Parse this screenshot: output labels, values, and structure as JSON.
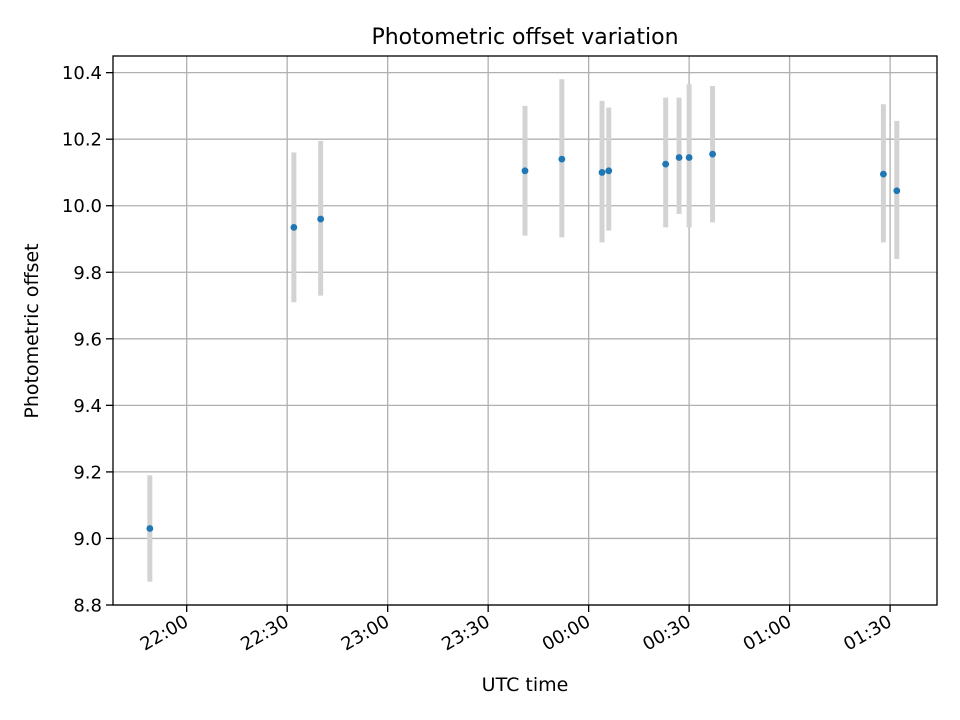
{
  "chart_data": {
    "type": "scatter",
    "title": "Photometric offset variation",
    "xlabel": "UTC time",
    "ylabel": "Photometric offset",
    "xlim": [
      "21:38",
      "01:44"
    ],
    "ylim": [
      8.8,
      10.45
    ],
    "x_ticks": [
      "22:00",
      "22:30",
      "23:00",
      "23:30",
      "00:00",
      "00:30",
      "01:00",
      "01:30"
    ],
    "y_ticks": [
      "8.8",
      "9.0",
      "9.2",
      "9.4",
      "9.6",
      "9.8",
      "10.0",
      "10.2",
      "10.4"
    ],
    "grid": true,
    "colors": {
      "points": "#1f77b4",
      "error_bars": "#d3d3d3",
      "grid": "#b0b0b0"
    },
    "points": [
      {
        "x": "21:49",
        "y": 9.03,
        "y_low": 8.87,
        "y_high": 9.19
      },
      {
        "x": "22:32",
        "y": 9.935,
        "y_low": 9.71,
        "y_high": 10.16
      },
      {
        "x": "22:40",
        "y": 9.96,
        "y_low": 9.73,
        "y_high": 10.195
      },
      {
        "x": "23:41",
        "y": 10.105,
        "y_low": 9.91,
        "y_high": 10.3
      },
      {
        "x": "23:52",
        "y": 10.14,
        "y_low": 9.905,
        "y_high": 10.38
      },
      {
        "x": "00:04",
        "y": 10.1,
        "y_low": 9.89,
        "y_high": 10.315
      },
      {
        "x": "00:06",
        "y": 10.105,
        "y_low": 9.925,
        "y_high": 10.295
      },
      {
        "x": "00:23",
        "y": 10.125,
        "y_low": 9.935,
        "y_high": 10.325
      },
      {
        "x": "00:27",
        "y": 10.145,
        "y_low": 9.975,
        "y_high": 10.325
      },
      {
        "x": "00:30",
        "y": 10.145,
        "y_low": 9.935,
        "y_high": 10.365
      },
      {
        "x": "00:37",
        "y": 10.155,
        "y_low": 9.95,
        "y_high": 10.36
      },
      {
        "x": "01:28",
        "y": 10.095,
        "y_low": 9.89,
        "y_high": 10.305
      },
      {
        "x": "01:32",
        "y": 10.045,
        "y_low": 9.84,
        "y_high": 10.255
      }
    ]
  }
}
